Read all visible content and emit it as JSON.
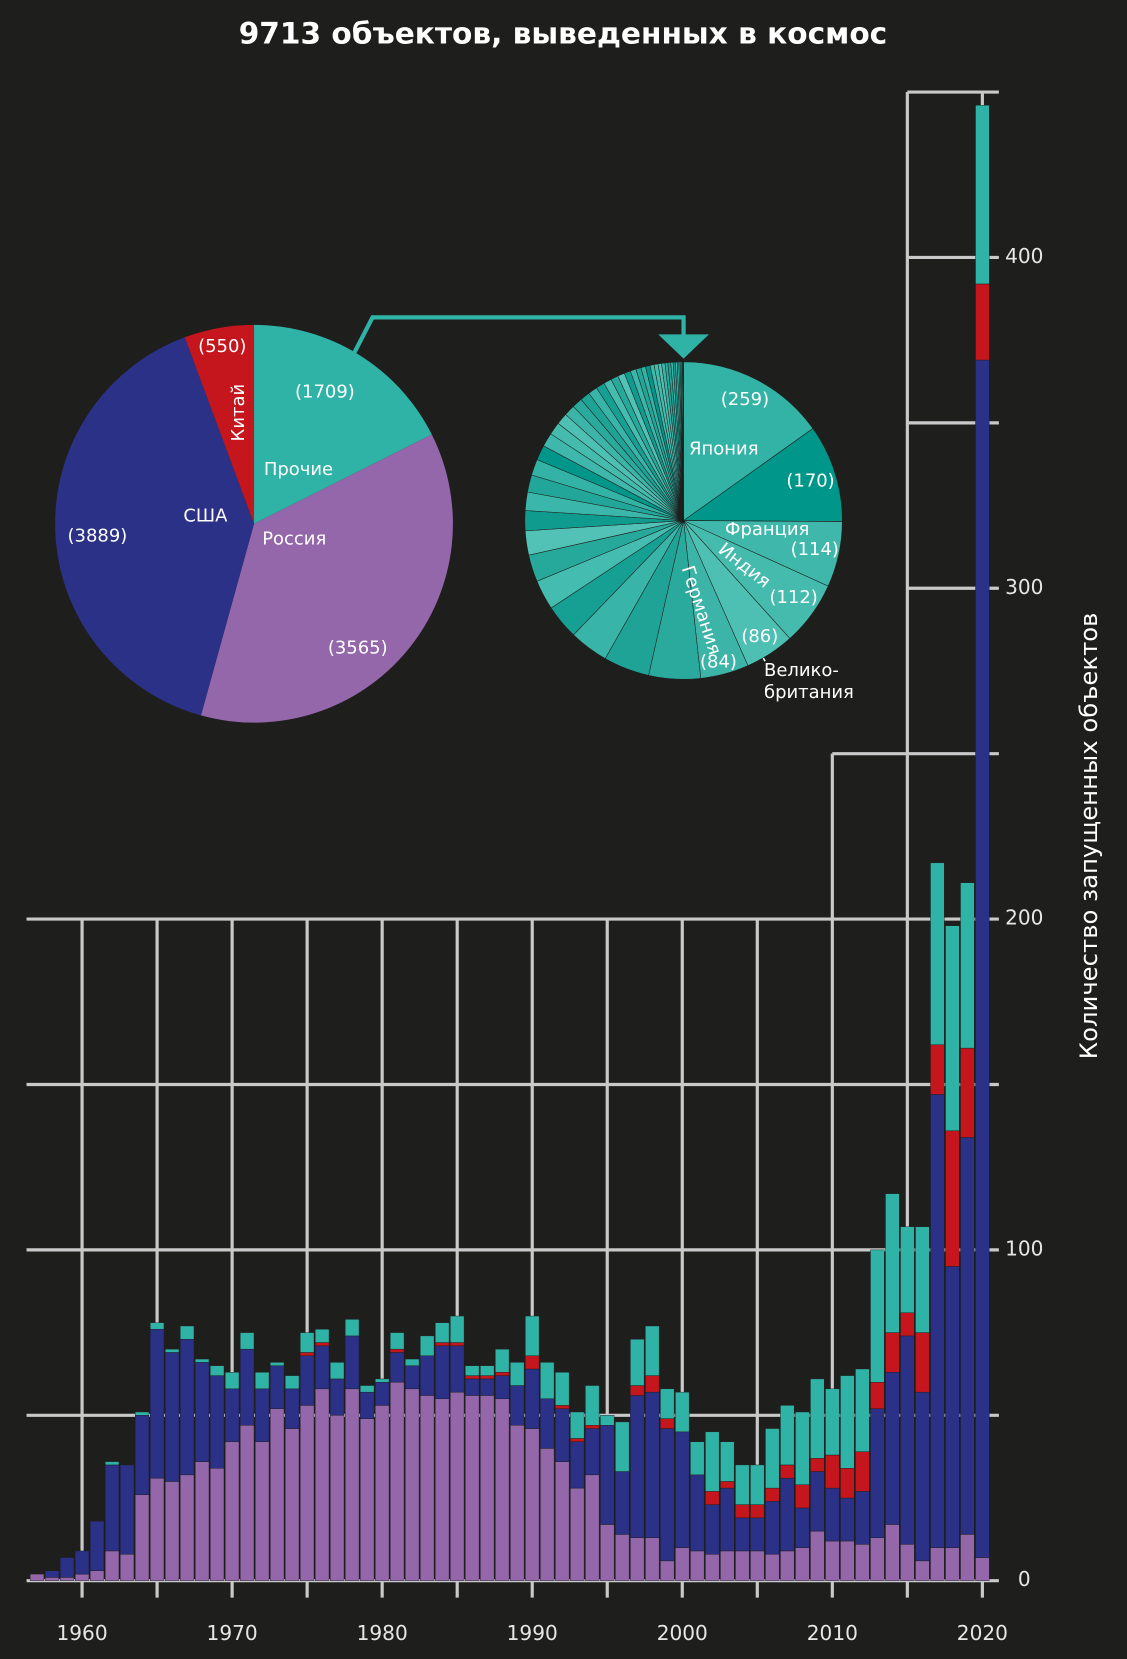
{
  "chart_data": [
    {
      "type": "stacked_bar",
      "title": "9713 объектов, выведенных в космос",
      "y_label": "Количество запущенных объектов",
      "x": [
        1957,
        1958,
        1959,
        1960,
        1961,
        1962,
        1963,
        1964,
        1965,
        1966,
        1967,
        1968,
        1969,
        1970,
        1971,
        1972,
        1973,
        1974,
        1975,
        1976,
        1977,
        1978,
        1979,
        1980,
        1981,
        1982,
        1983,
        1984,
        1985,
        1986,
        1987,
        1988,
        1989,
        1990,
        1991,
        1992,
        1993,
        1994,
        1995,
        1996,
        1997,
        1998,
        1999,
        2000,
        2001,
        2002,
        2003,
        2004,
        2005,
        2006,
        2007,
        2008,
        2009,
        2010,
        2011,
        2012,
        2013,
        2014,
        2015,
        2016,
        2017,
        2018,
        2019,
        2020
      ],
      "series": [
        {
          "color": "#9467aa",
          "values": [
            2,
            1,
            1,
            2,
            3,
            9,
            8,
            26,
            31,
            30,
            32,
            36,
            34,
            42,
            47,
            42,
            52,
            46,
            53,
            58,
            50,
            58,
            49,
            53,
            60,
            58,
            56,
            55,
            57,
            56,
            56,
            55,
            47,
            46,
            40,
            36,
            28,
            32,
            17,
            14,
            13,
            13,
            6,
            10,
            9,
            8,
            9,
            9,
            9,
            8,
            9,
            10,
            15,
            12,
            12,
            11,
            13,
            17,
            11,
            6,
            10,
            10,
            14,
            7
          ]
        },
        {
          "color": "#2b3187",
          "values": [
            0,
            2,
            6,
            7,
            15,
            26,
            27,
            24,
            45,
            39,
            41,
            30,
            28,
            16,
            23,
            16,
            13,
            12,
            15,
            13,
            11,
            16,
            8,
            7,
            9,
            7,
            12,
            16,
            14,
            5,
            5,
            7,
            12,
            18,
            15,
            16,
            14,
            14,
            30,
            19,
            43,
            44,
            40,
            35,
            23,
            15,
            19,
            10,
            10,
            16,
            22,
            12,
            18,
            16,
            13,
            16,
            39,
            46,
            63,
            51,
            137,
            85,
            120,
            362
          ]
        },
        {
          "color": "#c4161c",
          "values": [
            0,
            0,
            0,
            0,
            0,
            0,
            0,
            0,
            0,
            0,
            0,
            0,
            0,
            0,
            0,
            0,
            0,
            0,
            1,
            1,
            0,
            0,
            0,
            0,
            1,
            0,
            0,
            1,
            1,
            1,
            1,
            1,
            0,
            4,
            0,
            1,
            1,
            1,
            0,
            0,
            3,
            5,
            3,
            0,
            0,
            4,
            2,
            4,
            4,
            4,
            4,
            7,
            4,
            10,
            9,
            12,
            8,
            12,
            7,
            18,
            15,
            41,
            27,
            23
          ]
        },
        {
          "color": "#2fb3a6",
          "values": [
            0,
            0,
            0,
            0,
            0,
            1,
            0,
            1,
            2,
            1,
            4,
            1,
            3,
            5,
            5,
            5,
            1,
            4,
            6,
            4,
            5,
            5,
            2,
            1,
            5,
            2,
            6,
            6,
            8,
            3,
            3,
            7,
            7,
            12,
            11,
            10,
            8,
            12,
            3,
            15,
            14,
            15,
            9,
            12,
            10,
            18,
            12,
            12,
            12,
            18,
            18,
            22,
            24,
            20,
            28,
            25,
            40,
            42,
            26,
            32,
            55,
            62,
            50,
            54
          ]
        }
      ],
      "xlim": [
        1956.3,
        2021.1
      ],
      "xticks": [
        1960,
        1970,
        1980,
        1990,
        2000,
        2010,
        2020
      ],
      "minor_xticks": [
        1965,
        1975,
        1985,
        1995,
        2005,
        2015
      ],
      "ylim": [
        0,
        450
      ],
      "yticks": [
        0,
        100,
        200,
        300,
        400
      ],
      "minor_yticks": [
        50,
        150,
        250,
        350,
        450
      ],
      "grid": true,
      "grid_steps": [
        [
          1956.3,
          200
        ],
        [
          2010,
          250
        ],
        [
          2015,
          450
        ]
      ]
    },
    {
      "type": "pie",
      "categories": [
        "Прочие",
        "Россия",
        "США",
        "Китай"
      ],
      "values": [
        1709,
        3565,
        3889,
        550
      ],
      "value_labels": [
        "(1709)",
        "(3565)",
        "(3889)",
        "(550)"
      ],
      "colors": [
        "#2fb3a6",
        "#9467aa",
        "#2b3187",
        "#c4161c"
      ]
    },
    {
      "type": "pie",
      "categories": [
        "Япония",
        null,
        "Франция",
        "Индия",
        [
          "Велико-",
          "британия"
        ],
        "Германия",
        null,
        null,
        null,
        null,
        null,
        null,
        null,
        null,
        null,
        null,
        null,
        null,
        null,
        null,
        null,
        null,
        null,
        null,
        null,
        null,
        null,
        null,
        null,
        null,
        null,
        null,
        null,
        null,
        null,
        null,
        null,
        null,
        null,
        null,
        null,
        null,
        null,
        null,
        null,
        null,
        null,
        null,
        null
      ],
      "values": [
        259,
        170,
        114,
        112,
        86,
        84,
        90,
        80,
        68,
        60,
        52,
        47,
        42,
        35,
        32,
        30,
        28,
        26,
        24,
        22,
        20,
        19,
        18,
        17,
        16,
        15,
        14,
        13,
        12,
        11,
        10,
        9,
        8,
        8,
        7,
        7,
        6,
        6,
        5,
        5,
        4,
        4,
        3,
        3,
        2,
        2,
        2,
        1,
        1
      ],
      "value_labels": [
        "(259)",
        "(170)",
        "(114)",
        "(112)",
        "(86)",
        "(84)",
        null,
        null,
        null,
        null,
        null,
        null,
        null,
        null,
        null,
        null,
        null,
        null,
        null,
        null,
        null,
        null,
        null,
        null,
        null,
        null,
        null,
        null,
        null,
        null,
        null,
        null,
        null,
        null,
        null,
        null,
        null,
        null,
        null,
        null,
        null,
        null,
        null,
        null,
        null,
        null,
        null,
        null,
        null
      ],
      "colors": [
        "#33b3a5",
        "#00968a",
        "#3fb8ab",
        "#45bbae",
        "#4ec0b3",
        "#3db4a8",
        "#2aaa9d",
        "#1fa396",
        "#38b5a8",
        "#16a093",
        "#44bcb0",
        "#26a89b",
        "#52c2b6",
        "#0f9c8f",
        "#3ab7aa",
        "#21a699"
      ]
    }
  ]
}
